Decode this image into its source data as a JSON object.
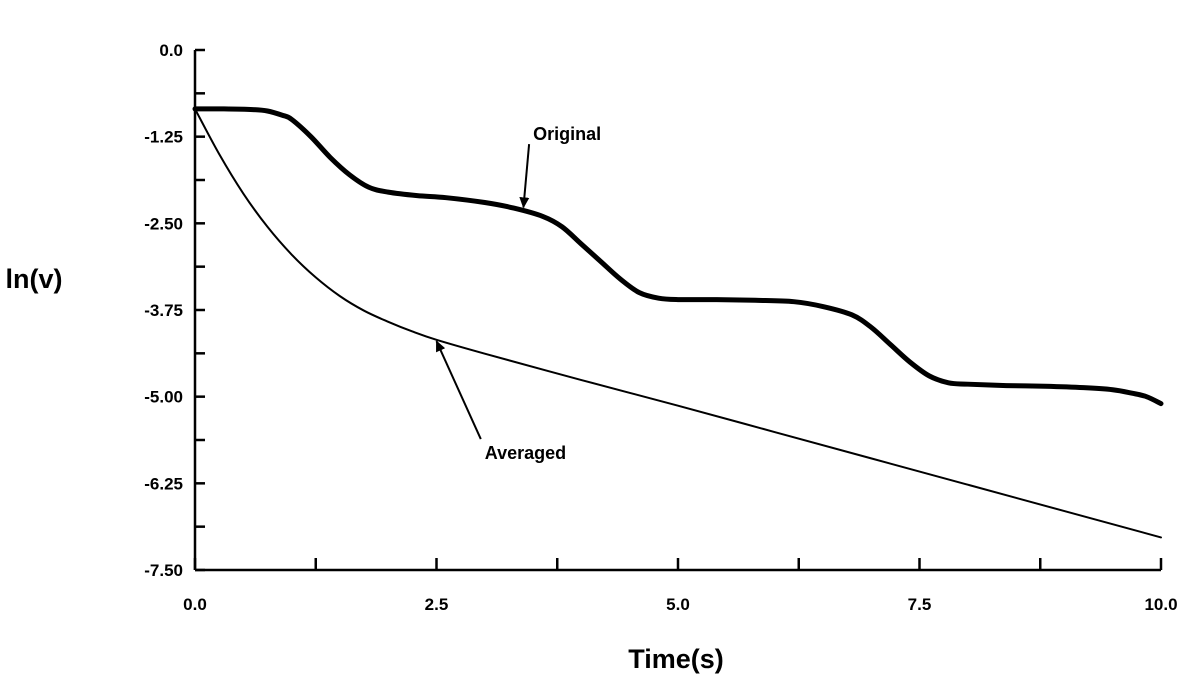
{
  "chart_data": {
    "type": "line",
    "title": "",
    "xlabel": "Time(s)",
    "ylabel": "ln(v)",
    "xlim": [
      0,
      10
    ],
    "ylim": [
      -7.5,
      0
    ],
    "x_ticks": [
      0,
      2.5,
      5,
      7.5,
      10
    ],
    "x_tick_labels": [
      "0.0",
      "2.5",
      "5.0",
      "7.5",
      "10.0"
    ],
    "x_minor_ticks": [
      1.25,
      3.75,
      6.25,
      8.75
    ],
    "y_ticks": [
      0,
      -1.25,
      -2.5,
      -3.75,
      -5,
      -6.25,
      -7.5
    ],
    "y_tick_labels": [
      "0.0",
      "-1.25",
      "-2.50",
      "-3.75",
      "-5.00",
      "-6.25",
      "-7.50"
    ],
    "y_minor_ticks": [
      -0.625,
      -1.875,
      -3.125,
      -4.375,
      -5.625,
      -6.875
    ],
    "grid": false,
    "series": [
      {
        "name": "Original",
        "x": [
          0,
          0.3,
          0.6,
          0.75,
          0.9,
          1.0,
          1.2,
          1.4,
          1.6,
          1.8,
          2.0,
          2.3,
          2.6,
          3.0,
          3.3,
          3.6,
          3.8,
          4.0,
          4.2,
          4.4,
          4.6,
          4.8,
          5.0,
          5.4,
          5.8,
          6.2,
          6.5,
          6.8,
          7.0,
          7.2,
          7.4,
          7.6,
          7.8,
          8.0,
          8.4,
          8.8,
          9.2,
          9.5,
          9.7,
          9.85,
          10.0
        ],
        "y": [
          -0.85,
          -0.85,
          -0.86,
          -0.88,
          -0.94,
          -1.0,
          -1.25,
          -1.55,
          -1.8,
          -1.98,
          -2.05,
          -2.1,
          -2.13,
          -2.2,
          -2.28,
          -2.4,
          -2.55,
          -2.8,
          -3.05,
          -3.3,
          -3.5,
          -3.58,
          -3.6,
          -3.6,
          -3.61,
          -3.63,
          -3.7,
          -3.82,
          -4.0,
          -4.25,
          -4.5,
          -4.7,
          -4.8,
          -4.82,
          -4.84,
          -4.85,
          -4.87,
          -4.9,
          -4.95,
          -5.0,
          -5.1
        ]
      },
      {
        "name": "Averaged",
        "x": [
          0,
          0.25,
          0.5,
          0.75,
          1.0,
          1.25,
          1.5,
          1.75,
          2.0,
          2.25,
          2.5,
          3.0,
          4.0,
          5.0,
          6.0,
          7.0,
          8.0,
          9.0,
          10.0
        ],
        "y": [
          -0.85,
          -1.5,
          -2.07,
          -2.55,
          -2.95,
          -3.28,
          -3.55,
          -3.76,
          -3.92,
          -4.06,
          -4.18,
          -4.38,
          -4.76,
          -5.13,
          -5.51,
          -5.89,
          -6.27,
          -6.65,
          -7.03
        ]
      }
    ],
    "annotations": [
      {
        "text": "Original",
        "x": 3.5,
        "y": -1.3,
        "arrow_to": [
          3.4,
          -2.27
        ]
      },
      {
        "text": "Averaged",
        "x": 3.0,
        "y": -5.9,
        "arrow_to": [
          2.5,
          -4.2
        ]
      }
    ]
  }
}
